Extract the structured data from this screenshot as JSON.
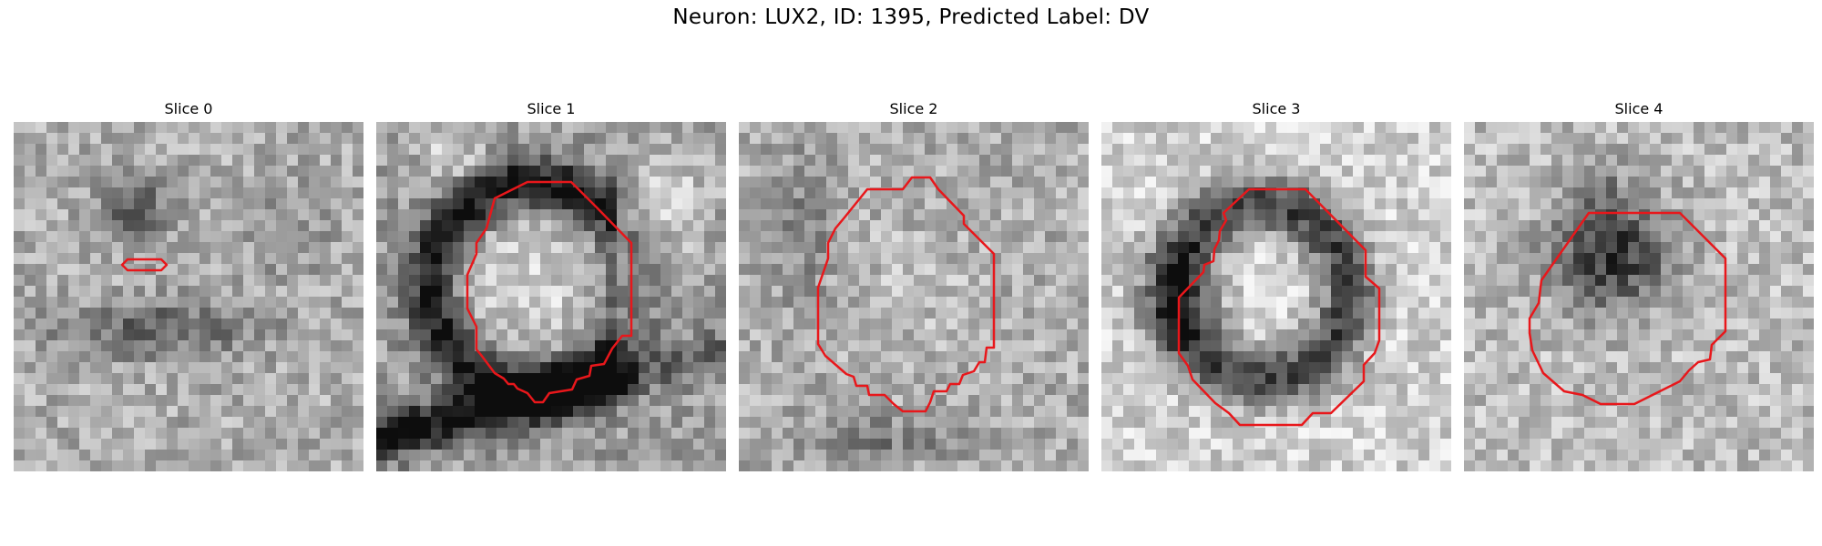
{
  "figure": {
    "title": "Neuron: LUX2, ID: 1395, Predicted Label: DV"
  },
  "panels": [
    {
      "title": "Slice 0",
      "pattern": "faint-dark-blob-small-contour"
    },
    {
      "title": "Slice 1",
      "pattern": "bright-cell-dark-rim-bottom-band"
    },
    {
      "title": "Slice 2",
      "pattern": "noisy-light-region"
    },
    {
      "title": "Slice 3",
      "pattern": "dark-ring-bright-center"
    },
    {
      "title": "Slice 4",
      "pattern": "dark-blob-center"
    }
  ],
  "colors": {
    "contour": "#e8171b",
    "background": "#ffffff"
  }
}
